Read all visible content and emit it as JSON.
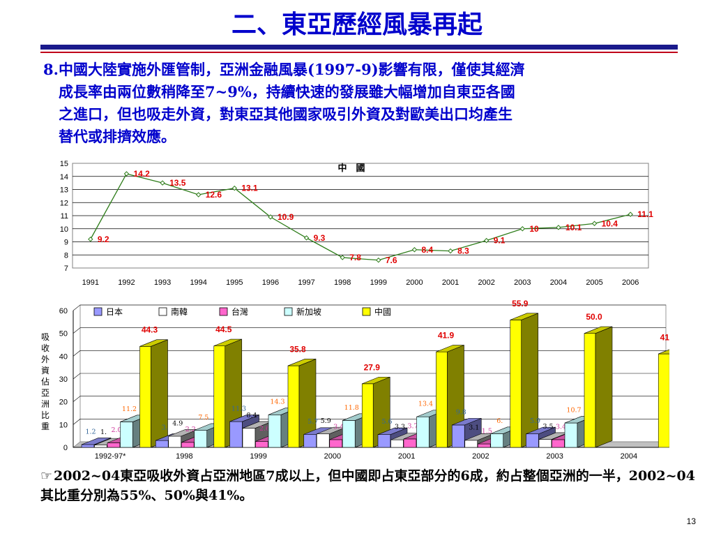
{
  "slide": {
    "title": "二、東亞歷經風暴再起",
    "point_number": "8.",
    "point_text": "中國大陸實施外匯管制，亞洲金融風暴(1997-9)影響有限，僅使其經濟\n成長率由兩位數稍降至7~9%，持續快速的發展雖大幅增加自東亞各國\n之進口，但也吸走外資，對東亞其他國家吸引外資及對歐美出口均產生\n替代或排擠效應。",
    "note_bullet": "☞",
    "note_text": "2002~04東亞吸收外資占亞洲地區7成以上，但中國即占東亞部分的6成，約占整個亞洲的一半，2002~04其比重分別為55%、50%與41%。",
    "page_number": "13"
  },
  "chart_data": [
    {
      "type": "line",
      "title": "中　國",
      "x": [
        "1991",
        "1992",
        "1993",
        "1994",
        "1995",
        "1996",
        "1997",
        "1998",
        "1999",
        "2000",
        "2001",
        "2002",
        "2003",
        "2004",
        "2005",
        "2006"
      ],
      "series": [
        {
          "values": [
            9.2,
            14.2,
            13.5,
            12.6,
            13.1,
            10.9,
            9.3,
            7.8,
            7.6,
            8.4,
            8.3,
            9.1,
            10,
            10.1,
            10.4,
            11.1
          ],
          "labels": [
            "9.2",
            "14.2",
            "13.5",
            "12.6",
            "13.1",
            "10.9",
            "9.3",
            "7.8",
            "7.6",
            "8.4",
            "8.3",
            "9.1",
            "10",
            "10.1",
            "10.4",
            "11.1"
          ],
          "color": "#2e7d1a"
        }
      ],
      "yticks": [
        "15",
        "14",
        "13",
        "12",
        "11",
        "10",
        "9",
        "8",
        "7"
      ],
      "ylim": [
        7,
        15
      ],
      "grid": true,
      "label_color": "#e00000"
    },
    {
      "type": "bar",
      "ylabel": "吸收外資佔亞洲比重",
      "categories": [
        "1992-97*",
        "1998",
        "1999",
        "2000",
        "2001",
        "2002",
        "2003",
        "2004"
      ],
      "yticks": [
        "60",
        "50",
        "40",
        "30",
        "20",
        "10",
        "0"
      ],
      "ylim": [
        0,
        60
      ],
      "grid": true,
      "legend_position": "top",
      "series": [
        {
          "name": "日本",
          "color": "#9999ff",
          "values": [
            1.2,
            3.0,
            11.3,
            5.7,
            5.6,
            9.8,
            5.9,
            null
          ],
          "labels": [
            "1.2",
            "3.",
            "11.3",
            "5.7",
            "5.6",
            "9.8",
            "5.9",
            ""
          ],
          "label_color": "#336699"
        },
        {
          "name": "南韓",
          "color": "#ffffff",
          "values": [
            1.0,
            4.9,
            8.4,
            5.9,
            3.3,
            3.1,
            3.5,
            null
          ],
          "labels": [
            "1.",
            "4.9",
            "8.4",
            "5.9",
            "3.3",
            "3.1",
            "3.5",
            ""
          ],
          "label_color": "#000000"
        },
        {
          "name": "台灣",
          "color": "#ff66cc",
          "values": [
            2.0,
            2.2,
            2.6,
            3.4,
            3.7,
            1.5,
            3.4,
            null
          ],
          "labels": [
            "2.0",
            "2.2",
            "2.6",
            "3.4",
            "3.7",
            "1.5",
            "3.4",
            ""
          ],
          "label_color": "#cc3399"
        },
        {
          "name": "新加坡",
          "color": "#ccffff",
          "values": [
            11.2,
            7.5,
            14.3,
            11.8,
            13.4,
            6.0,
            10.7,
            null
          ],
          "labels": [
            "11.2",
            "7.5",
            "14.3",
            "11.8",
            "13.4",
            "6.",
            "10.7",
            ""
          ],
          "label_color": "#ff6600"
        },
        {
          "name": "中國",
          "color": "#ffff00",
          "values": [
            44.3,
            44.5,
            35.8,
            27.9,
            41.9,
            55.9,
            50.0,
            41.0
          ],
          "labels": [
            "44.3",
            "44.5",
            "35.8",
            "27.9",
            "41.9",
            "55.9",
            "50.0",
            "41.0"
          ],
          "label_color": "#e00000"
        }
      ]
    }
  ]
}
